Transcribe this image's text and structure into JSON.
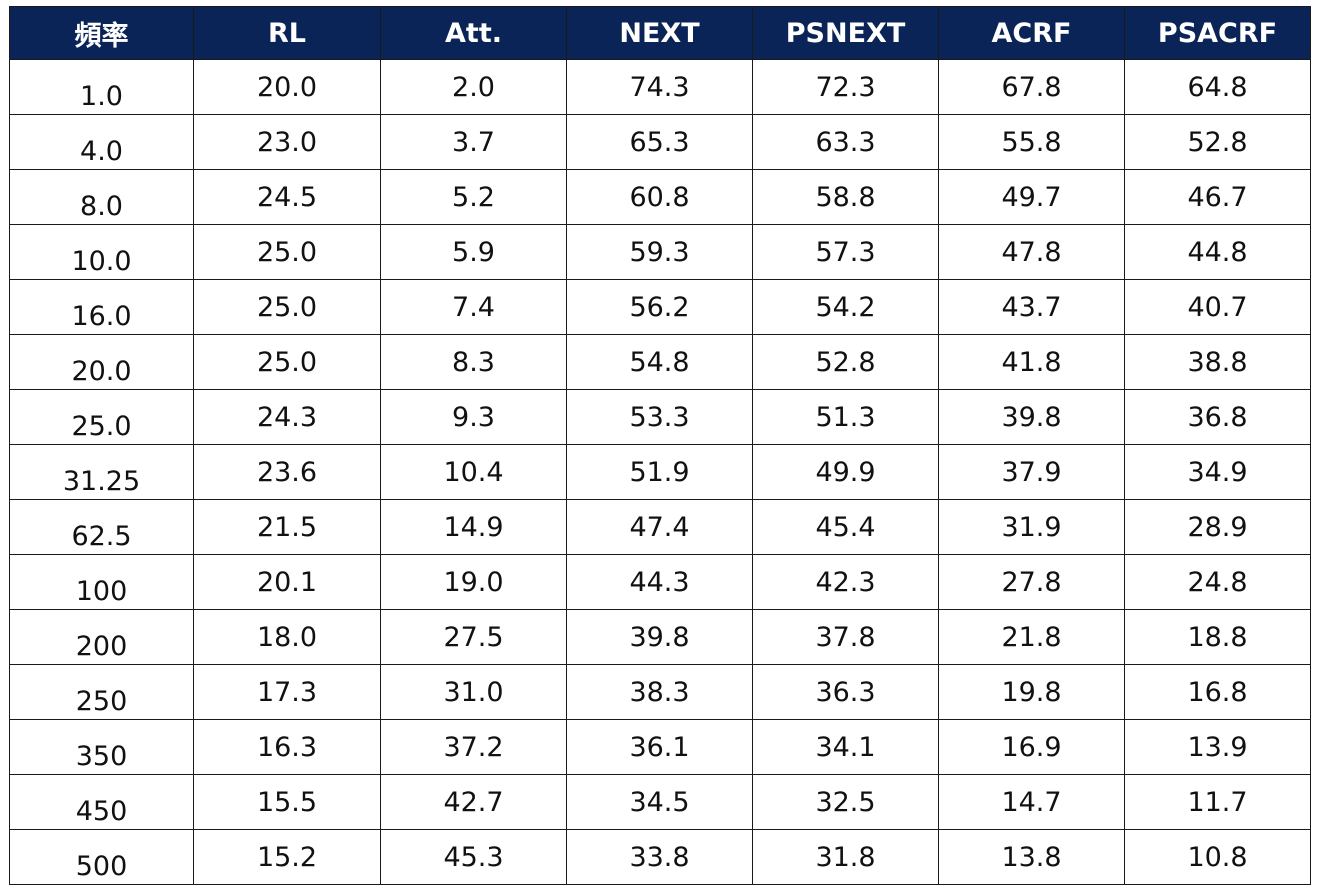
{
  "colors": {
    "header_background": "#0b2458",
    "header_text": "#ffffff",
    "border": "#1a1a1a",
    "cell_text": "#111111"
  },
  "table": {
    "headers": [
      "頻率",
      "RL",
      "Att.",
      "NEXT",
      "PSNEXT",
      "ACRF",
      "PSACRF"
    ],
    "rows": [
      [
        "1.0",
        "20.0",
        "2.0",
        "74.3",
        "72.3",
        "67.8",
        "64.8"
      ],
      [
        "4.0",
        "23.0",
        "3.7",
        "65.3",
        "63.3",
        "55.8",
        "52.8"
      ],
      [
        "8.0",
        "24.5",
        "5.2",
        "60.8",
        "58.8",
        "49.7",
        "46.7"
      ],
      [
        "10.0",
        "25.0",
        "5.9",
        "59.3",
        "57.3",
        "47.8",
        "44.8"
      ],
      [
        "16.0",
        "25.0",
        "7.4",
        "56.2",
        "54.2",
        "43.7",
        "40.7"
      ],
      [
        "20.0",
        "25.0",
        "8.3",
        "54.8",
        "52.8",
        "41.8",
        "38.8"
      ],
      [
        "25.0",
        "24.3",
        "9.3",
        "53.3",
        "51.3",
        "39.8",
        "36.8"
      ],
      [
        "31.25",
        "23.6",
        "10.4",
        "51.9",
        "49.9",
        "37.9",
        "34.9"
      ],
      [
        "62.5",
        "21.5",
        "14.9",
        "47.4",
        "45.4",
        "31.9",
        "28.9"
      ],
      [
        "100",
        "20.1",
        "19.0",
        "44.3",
        "42.3",
        "27.8",
        "24.8"
      ],
      [
        "200",
        "18.0",
        "27.5",
        "39.8",
        "37.8",
        "21.8",
        "18.8"
      ],
      [
        "250",
        "17.3",
        "31.0",
        "38.3",
        "36.3",
        "19.8",
        "16.8"
      ],
      [
        "350",
        "16.3",
        "37.2",
        "36.1",
        "34.1",
        "16.9",
        "13.9"
      ],
      [
        "450",
        "15.5",
        "42.7",
        "34.5",
        "32.5",
        "14.7",
        "11.7"
      ],
      [
        "500",
        "15.2",
        "45.3",
        "33.8",
        "31.8",
        "13.8",
        "10.8"
      ]
    ]
  }
}
